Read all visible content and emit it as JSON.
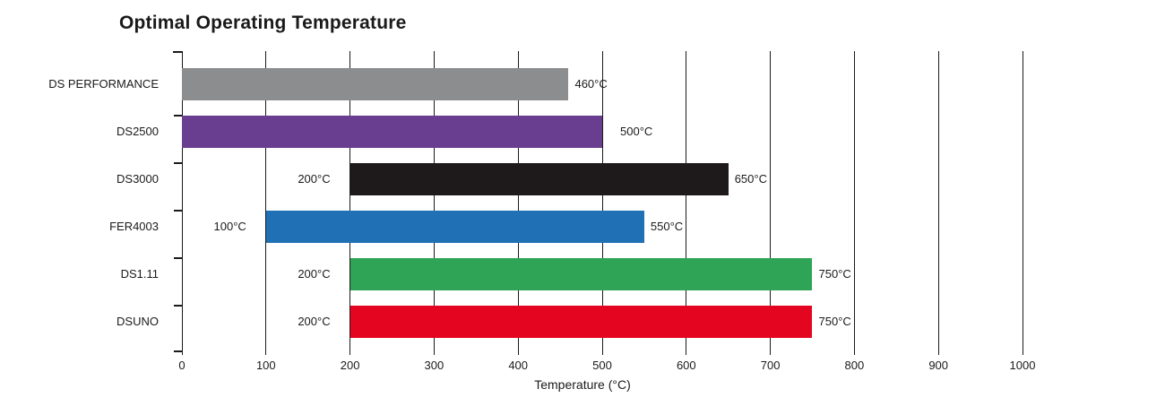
{
  "page": {
    "background": "#ffffff"
  },
  "chart_data": {
    "type": "bar",
    "orientation": "horizontal",
    "title": "Optimal Operating Temperature",
    "xlabel": "Temperature (°C)",
    "xlim": [
      0,
      1000
    ],
    "xticks": [
      0,
      100,
      200,
      300,
      400,
      500,
      600,
      700,
      800,
      900,
      1000
    ],
    "grid": true,
    "legend": false,
    "axis_color": "#1a1a1a",
    "categories": [
      "DS PERFORMANCE",
      "DS2500",
      "DS3000",
      "FER4003",
      "DS1.11",
      "DSUNO"
    ],
    "bars": [
      {
        "category": "DS PERFORMANCE",
        "from": 0,
        "to": 460,
        "color": "#8b8d8e",
        "from_label": "",
        "to_label": "460°C"
      },
      {
        "category": "DS2500",
        "from": 0,
        "to": 500,
        "color": "#693e90",
        "from_label": "",
        "to_label": "500°C"
      },
      {
        "category": "DS3000",
        "from": 200,
        "to": 650,
        "color": "#1e1a1b",
        "from_label": "200°C",
        "to_label": "650°C"
      },
      {
        "category": "FER4003",
        "from": 100,
        "to": 550,
        "color": "#1f70b5",
        "from_label": "100°C",
        "to_label": "550°C"
      },
      {
        "category": "DS1.11",
        "from": 200,
        "to": 750,
        "color": "#2fa356",
        "from_label": "200°C",
        "to_label": "750°C"
      },
      {
        "category": "DSUNO",
        "from": 200,
        "to": 750,
        "color": "#e40521",
        "from_label": "200°C",
        "to_label": "750°C"
      }
    ]
  }
}
